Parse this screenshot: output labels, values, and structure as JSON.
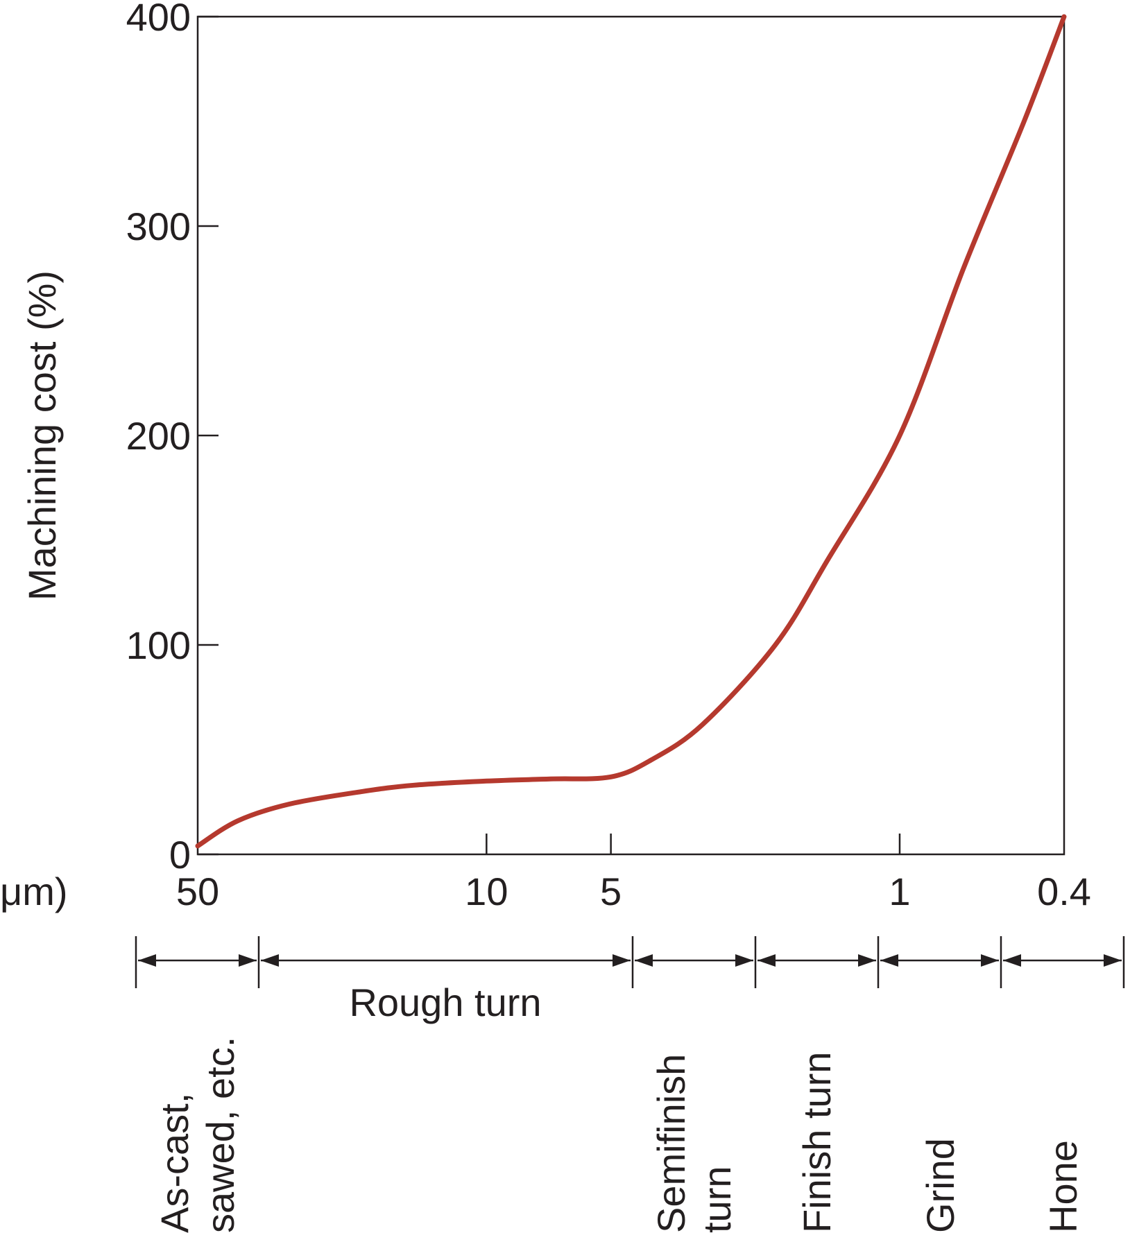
{
  "chart_data": {
    "type": "line",
    "title": "",
    "ylabel": "Machining cost (%)",
    "xlabel_fragment": "μm)",
    "ylim": [
      0,
      400
    ],
    "yticks": [
      "0",
      "100",
      "200",
      "300",
      "400"
    ],
    "xticks": [
      {
        "label": "50",
        "value": 50
      },
      {
        "label": "10",
        "value": 10
      },
      {
        "label": "5",
        "value": 5
      },
      {
        "label": "1",
        "value": 1
      },
      {
        "label": "0.4",
        "value": 0.4
      }
    ],
    "x_scale": "log-reversed",
    "grid": false,
    "series": [
      {
        "color": "#b5392e",
        "points": [
          {
            "x": 50,
            "y": 4
          },
          {
            "x": 40,
            "y": 16
          },
          {
            "x": 30,
            "y": 24
          },
          {
            "x": 20,
            "y": 30
          },
          {
            "x": 15,
            "y": 33
          },
          {
            "x": 10,
            "y": 35
          },
          {
            "x": 7,
            "y": 36
          },
          {
            "x": 5,
            "y": 37
          },
          {
            "x": 4,
            "y": 45
          },
          {
            "x": 3,
            "y": 62
          },
          {
            "x": 2,
            "y": 100
          },
          {
            "x": 1.5,
            "y": 140
          },
          {
            "x": 1,
            "y": 200
          },
          {
            "x": 0.7,
            "y": 280
          },
          {
            "x": 0.5,
            "y": 350
          },
          {
            "x": 0.4,
            "y": 400
          }
        ]
      }
    ],
    "processes": [
      {
        "lines": [
          "As-cast,",
          "sawed, etc."
        ]
      },
      {
        "lines": [
          "Rough turn"
        ]
      },
      {
        "lines": [
          "Semifinish",
          "turn"
        ]
      },
      {
        "lines": [
          "Finish turn"
        ]
      },
      {
        "lines": [
          "Grind"
        ]
      },
      {
        "lines": [
          "Hone"
        ]
      }
    ]
  }
}
